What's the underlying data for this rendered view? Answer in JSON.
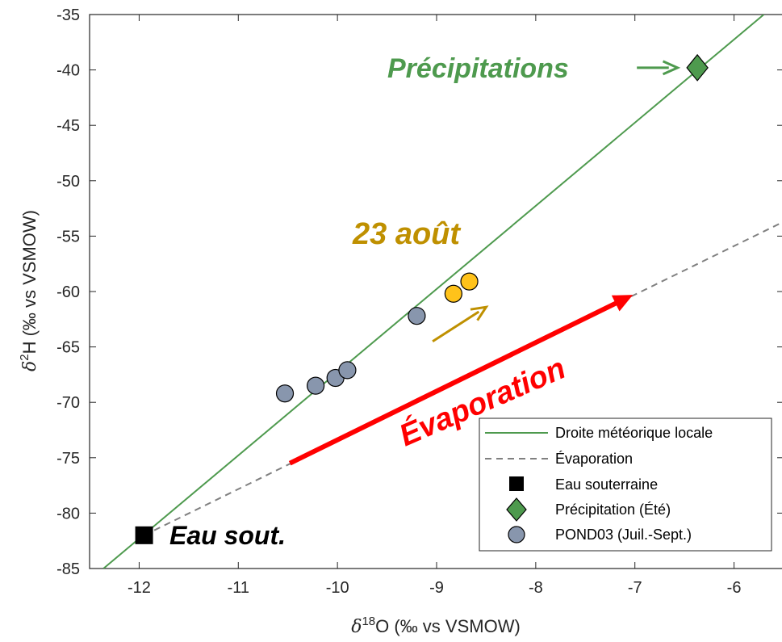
{
  "chart_data": {
    "type": "scatter",
    "xlabel": "δ18O (‰ vs VSMOW)",
    "ylabel": "δ2H (‰ vs VSMOW)",
    "xlim": [
      -12.5,
      -5.5
    ],
    "ylim": [
      -85,
      -35
    ],
    "xticks": [
      -12,
      -11,
      -10,
      -9,
      -8,
      -7,
      -6
    ],
    "yticks": [
      -35,
      -40,
      -45,
      -50,
      -55,
      -60,
      -65,
      -70,
      -75,
      -80,
      -85
    ],
    "x_tick_labels": [
      "-12",
      "-11",
      "-10",
      "-9",
      "-8",
      "-7",
      "-6"
    ],
    "y_tick_labels": [
      "-35",
      "-40",
      "-45",
      "-50",
      "-55",
      "-60",
      "-65",
      "-70",
      "-75",
      "-80",
      "-85"
    ],
    "grid": false,
    "legend_position": "bottom-right",
    "lines": [
      {
        "name": "Droite météorique locale",
        "style": "solid",
        "color": "#4e9a4e",
        "points": [
          [
            -12.36,
            -85
          ],
          [
            -5.7,
            -35
          ]
        ]
      },
      {
        "name": "Évaporation",
        "style": "dashed",
        "color": "#808080",
        "points": [
          [
            -11.95,
            -82
          ],
          [
            -5.5,
            -53.7
          ]
        ]
      }
    ],
    "series": [
      {
        "name": "Eau souterraine",
        "marker": "square",
        "color": "#000000",
        "points": [
          [
            -11.95,
            -82.0
          ]
        ]
      },
      {
        "name": "Précipitation (Été)",
        "marker": "diamond",
        "color": "#4e9a4e",
        "points": [
          [
            -6.37,
            -39.8
          ]
        ]
      },
      {
        "name": "POND03 (Juil.-Sept.)",
        "marker": "circle",
        "color": "#8896ad",
        "points": [
          [
            -10.53,
            -69.2
          ],
          [
            -10.22,
            -68.5
          ],
          [
            -10.02,
            -67.8
          ],
          [
            -9.9,
            -67.1
          ],
          [
            -9.2,
            -62.2
          ]
        ]
      },
      {
        "marker": "circle",
        "color": "#ffc21a",
        "points": [
          [
            -8.83,
            -60.2
          ],
          [
            -8.67,
            -59.1
          ]
        ]
      }
    ],
    "annotations": [
      {
        "text": "Précipitations",
        "color": "#4e9a4e"
      },
      {
        "text": "23 août",
        "color": "#bf9000"
      },
      {
        "text": "Évaporation",
        "color": "#ff0000"
      },
      {
        "text": "Eau sout.",
        "color": "#000000"
      }
    ],
    "arrows": [
      {
        "color": "#4e9a4e",
        "from": [
          -6.98,
          -39.8
        ],
        "to": [
          -6.57,
          -39.8
        ]
      },
      {
        "color": "#bf9000",
        "from": [
          -9.04,
          -64.5
        ],
        "to": [
          -8.5,
          -61.4
        ]
      },
      {
        "color": "#ff0000",
        "from": [
          -10.48,
          -75.5
        ],
        "to": [
          -7.02,
          -60.3
        ]
      }
    ]
  }
}
